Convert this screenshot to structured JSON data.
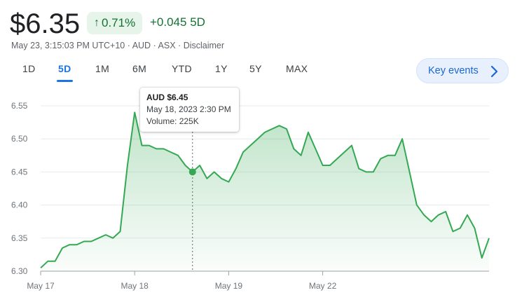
{
  "quote": {
    "price": "$6.35",
    "change_pct": "0.71%",
    "change_abs": "+0.045 5D",
    "arrow_icon": "arrow-up-icon"
  },
  "meta": {
    "timestamp": "May 23, 3:15:03 PM UTC+10",
    "currency": "AUD",
    "exchange": "ASX",
    "separator": "·",
    "disclaimer": "Disclaimer"
  },
  "tabs": [
    "1D",
    "5D",
    "1M",
    "6M",
    "YTD",
    "1Y",
    "5Y",
    "MAX"
  ],
  "active_tab": "5D",
  "key_events": {
    "label": "Key events",
    "icon": "chevron-right-icon"
  },
  "tooltip": {
    "price": "AUD $6.45",
    "datetime": "May 18, 2023 2:30 PM",
    "volume": "Volume: 225K"
  },
  "colors": {
    "positive": "#137333",
    "line": "#34a853",
    "accent": "#1a73e8",
    "badge_bg": "#e6f4ea"
  },
  "chart_data": {
    "type": "area",
    "ylim": [
      6.3,
      6.55
    ],
    "yticks": [
      "6.55",
      "6.50",
      "6.45",
      "6.40",
      "6.35",
      "6.30"
    ],
    "xticks": [
      {
        "label": "May 17",
        "index": 0
      },
      {
        "label": "May 18",
        "index": 13
      },
      {
        "label": "May 19",
        "index": 26
      },
      {
        "label": "May 22",
        "index": 39
      }
    ],
    "x_count": 63,
    "highlight_index": 21,
    "values": [
      6.305,
      6.315,
      6.315,
      6.335,
      6.34,
      6.34,
      6.345,
      6.345,
      6.35,
      6.355,
      6.35,
      6.36,
      6.46,
      6.54,
      6.49,
      6.49,
      6.485,
      6.485,
      6.48,
      6.475,
      6.46,
      6.45,
      6.46,
      6.44,
      6.45,
      6.44,
      6.435,
      6.455,
      6.48,
      6.49,
      6.5,
      6.51,
      6.515,
      6.52,
      6.515,
      6.485,
      6.475,
      6.51,
      6.485,
      6.46,
      6.46,
      6.47,
      6.48,
      6.49,
      6.455,
      6.45,
      6.45,
      6.47,
      6.475,
      6.475,
      6.5,
      6.45,
      6.4,
      6.385,
      6.375,
      6.385,
      6.39,
      6.36,
      6.365,
      6.385,
      6.365,
      6.32,
      6.35
    ]
  }
}
